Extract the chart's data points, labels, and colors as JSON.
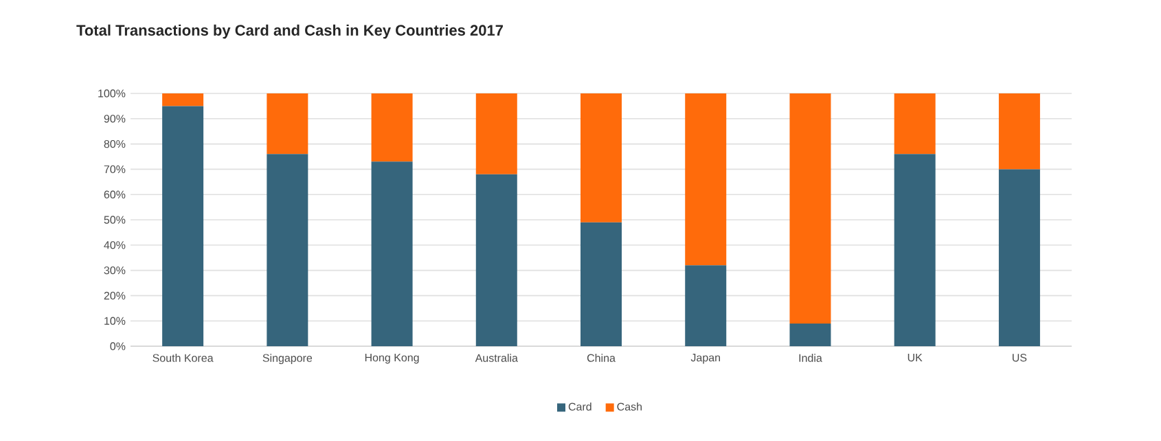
{
  "chart_data": {
    "type": "bar",
    "title": "Total Transactions by Card and Cash in Key Countries 2017",
    "categories": [
      "South Korea",
      "Singapore",
      "Hong Kong",
      "Australia",
      "China",
      "Japan",
      "India",
      "UK",
      "US"
    ],
    "stacked": true,
    "series": [
      {
        "name": "Card",
        "color": "#36657c",
        "values": [
          95,
          76,
          73,
          68,
          49,
          32,
          9,
          76,
          70
        ]
      },
      {
        "name": "Cash",
        "color": "#ff6b0b",
        "values": [
          5,
          24,
          27,
          32,
          51,
          68,
          91,
          24,
          30
        ]
      }
    ],
    "ylim": [
      0,
      100
    ],
    "yticks": [
      {
        "value": 0,
        "label": "0%"
      },
      {
        "value": 10,
        "label": "10%"
      },
      {
        "value": 20,
        "label": "20%"
      },
      {
        "value": 30,
        "label": "30%"
      },
      {
        "value": 40,
        "label": "40%"
      },
      {
        "value": 50,
        "label": "50%"
      },
      {
        "value": 60,
        "label": "60%"
      },
      {
        "value": 70,
        "label": "70%"
      },
      {
        "value": 80,
        "label": "80%"
      },
      {
        "value": 90,
        "label": "90%"
      },
      {
        "value": 100,
        "label": "100%"
      }
    ],
    "grid": "y",
    "legend": "bottom"
  }
}
